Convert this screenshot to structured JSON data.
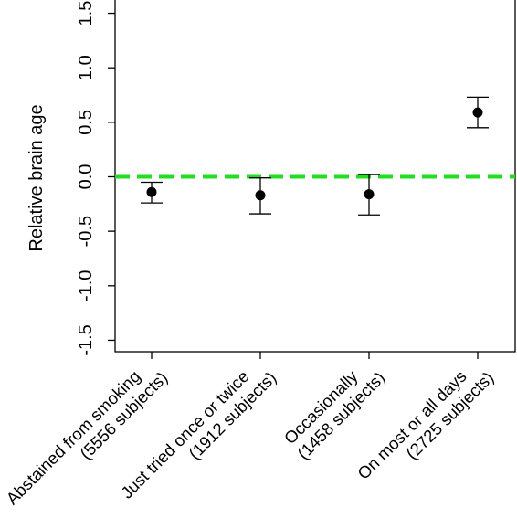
{
  "chart_data": {
    "type": "scatter",
    "title": "",
    "xlabel": "",
    "ylabel": "Relative brain age",
    "ylim": [
      -1.65,
      1.65
    ],
    "yticks": [
      -1.5,
      -1.0,
      -0.5,
      0.0,
      0.5,
      1.0,
      1.5
    ],
    "ytick_labels": [
      "-1.5",
      "-1.0",
      "-0.5",
      "0.0",
      "0.5",
      "1.0",
      "1.5"
    ],
    "categories": [
      {
        "line1": "Abstained from smoking",
        "line2": "(5556 subjects)"
      },
      {
        "line1": "Just tried once or twice",
        "line2": "(1912 subjects)"
      },
      {
        "line1": "Occasionally",
        "line2": "(1458 subjects)"
      },
      {
        "line1": "On most or all days",
        "line2": "(2725 subjects)"
      }
    ],
    "series": [
      {
        "values": [
          -0.14,
          -0.17,
          -0.16,
          0.59
        ],
        "lower": [
          -0.24,
          -0.34,
          -0.35,
          0.45
        ],
        "upper": [
          -0.05,
          -0.01,
          0.02,
          0.73
        ]
      }
    ],
    "reference_line": {
      "y": 0.0,
      "color": "#22dd22",
      "style": "dashed"
    },
    "grid": false,
    "legend": "none"
  }
}
